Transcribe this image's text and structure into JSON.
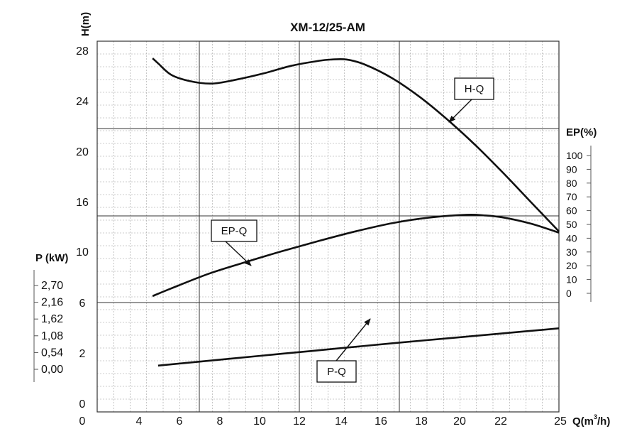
{
  "chart_data": {
    "type": "line",
    "title": "XM-12/25-AM",
    "xlabel": "Q(m",
    "xlabel_sup": "3",
    "xlabel_suffix": "/h)",
    "xlim": [
      0,
      25
    ],
    "x_ticks": [
      "0",
      "4",
      "6",
      "8",
      "10",
      "12",
      "14",
      "16",
      "18",
      "20",
      "22",
      "25"
    ],
    "head_axis": {
      "label": "H(m)",
      "ylim": [
        0,
        28
      ],
      "ticks": [
        "0",
        "2",
        "6",
        "10",
        "16",
        "20",
        "24",
        "28"
      ]
    },
    "efficiency_axis": {
      "label": "EP(%)",
      "ylim": [
        0,
        100
      ],
      "ticks": [
        "100",
        "90",
        "80",
        "70",
        "60",
        "50",
        "40",
        "30",
        "20",
        "10",
        "0"
      ]
    },
    "power_axis": {
      "label": "P (kW)",
      "ylim": [
        0,
        2.7
      ],
      "ticks": [
        "2,70",
        "2,16",
        "1,62",
        "1,08",
        "0,54",
        "0,00"
      ]
    },
    "grid": true,
    "series": [
      {
        "name": "H-Q",
        "axis": "head",
        "label": "H-Q",
        "x": [
          3.0,
          3.3,
          4.0,
          5.0,
          6.2,
          7.5,
          9.0,
          10.5,
          12.0,
          12.7,
          13.5,
          14.5,
          16.0,
          17.5,
          19.0,
          20.5,
          22.0,
          23.5,
          25.0
        ],
        "y": [
          27.3,
          26.9,
          26.0,
          25.5,
          25.3,
          25.6,
          26.1,
          26.7,
          27.1,
          27.2,
          27.2,
          26.8,
          25.7,
          24.2,
          22.4,
          20.4,
          18.2,
          15.9,
          13.6
        ]
      },
      {
        "name": "EP-Q",
        "axis": "efficiency",
        "label": "EP-Q",
        "x": [
          3.0,
          4.0,
          6.0,
          8.0,
          10.0,
          12.0,
          14.0,
          16.0,
          18.0,
          20.0,
          21.0,
          22.0,
          23.5,
          25.0
        ],
        "y": [
          -2.0,
          3.5,
          14.0,
          22.5,
          30.5,
          38.0,
          45.0,
          51.0,
          55.0,
          57.0,
          56.5,
          55.0,
          50.5,
          44.0
        ]
      },
      {
        "name": "P-Q",
        "axis": "power",
        "label": "P-Q",
        "x": [
          3.3,
          7.0,
          10.0,
          13.0,
          16.0,
          19.0,
          22.0,
          25.0
        ],
        "y": [
          0.12,
          0.33,
          0.5,
          0.67,
          0.84,
          1.0,
          1.16,
          1.32
        ]
      }
    ]
  }
}
